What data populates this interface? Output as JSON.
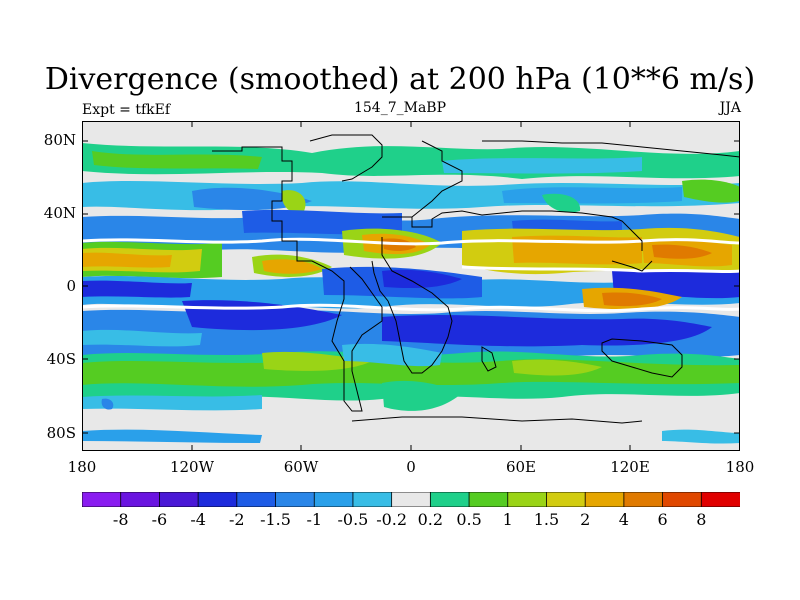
{
  "title": "Divergence (smoothed) at 200 hPa (10**6 m/s)",
  "left_label": "Expt = tfkEf",
  "center_label": "154_7_MaBP",
  "right_label": "JJA",
  "lat_ticks": [
    "80N",
    "40N",
    "0",
    "40S",
    "80S"
  ],
  "lon_ticks": [
    "180",
    "120W",
    "60W",
    "0",
    "60E",
    "120E",
    "180"
  ],
  "colorbar": {
    "labels": [
      "-8",
      "-6",
      "-4",
      "-2",
      "-1.5",
      "-1",
      "-0.5",
      "-0.2",
      "0.2",
      "0.5",
      "1",
      "1.5",
      "2",
      "4",
      "6",
      "8"
    ],
    "colors": [
      "#8a1cf0",
      "#6a14e0",
      "#4a18d6",
      "#1d2bdc",
      "#1e5ce6",
      "#2a86e8",
      "#2aa0ea",
      "#38bde6",
      "#e8e8e8",
      "#1fd08a",
      "#55cc22",
      "#9ad416",
      "#d2cc10",
      "#e6a600",
      "#e07a00",
      "#e04800",
      "#e00000"
    ]
  },
  "map_colors": {
    "neutral": "#e8e8e8",
    "strong_neg": "#1d2bdc",
    "neg": "#2a86e8",
    "weak_neg": "#38bde6",
    "weak_pos": "#1fd08a",
    "pos": "#55cc22",
    "mod_pos": "#d2cc10",
    "strong_pos": "#e6a600",
    "very_pos": "#e07a00",
    "coastline": "#000000"
  }
}
